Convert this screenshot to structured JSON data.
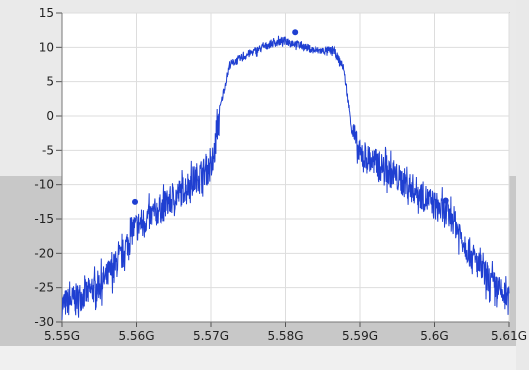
{
  "chart_data": {
    "type": "line",
    "title": "",
    "xlabel": "",
    "ylabel": "",
    "xlim": [
      5.55,
      5.61
    ],
    "ylim": [
      -30,
      15
    ],
    "grid": true,
    "x_ticks": [
      5.55,
      5.56,
      5.57,
      5.58,
      5.59,
      5.6,
      5.61
    ],
    "x_tick_labels": [
      "5.55G",
      "5.56G",
      "5.57G",
      "5.58G",
      "5.59G",
      "5.6G",
      "5.61G"
    ],
    "y_ticks": [
      15,
      10,
      5,
      0,
      -5,
      -10,
      -15,
      -20,
      -25,
      -30
    ],
    "y_tick_labels": [
      "15",
      "10",
      "5",
      "0",
      "-5",
      "-10",
      "-15",
      "-20",
      "-25",
      "-30"
    ],
    "series": [
      {
        "color": "#1f3fd1",
        "envelope": [
          [
            5.55,
            -27.5
          ],
          [
            5.552,
            -26.5
          ],
          [
            5.554,
            -25.5
          ],
          [
            5.556,
            -23.5
          ],
          [
            5.558,
            -20.5
          ],
          [
            5.5595,
            -16.5
          ],
          [
            5.562,
            -14.5
          ],
          [
            5.565,
            -12.0
          ],
          [
            5.5685,
            -8.5
          ],
          [
            5.5702,
            -7.5
          ],
          [
            5.5712,
            1.0
          ],
          [
            5.5725,
            7.5
          ],
          [
            5.575,
            9.0
          ],
          [
            5.578,
            10.5
          ],
          [
            5.58,
            11.0
          ],
          [
            5.582,
            10.3
          ],
          [
            5.584,
            9.5
          ],
          [
            5.5865,
            9.5
          ],
          [
            5.5878,
            7.0
          ],
          [
            5.5888,
            -1.0
          ],
          [
            5.5898,
            -5.5
          ],
          [
            5.593,
            -7.5
          ],
          [
            5.597,
            -10.5
          ],
          [
            5.6,
            -13.0
          ],
          [
            5.6025,
            -15.0
          ],
          [
            5.6045,
            -19.5
          ],
          [
            5.607,
            -23.5
          ],
          [
            5.61,
            -27.0
          ]
        ]
      }
    ],
    "markers": [
      {
        "x": 5.5598,
        "y": -12.5
      },
      {
        "x": 5.5813,
        "y": 12.2
      },
      {
        "x": 5.6015,
        "y": -12.3
      }
    ]
  }
}
